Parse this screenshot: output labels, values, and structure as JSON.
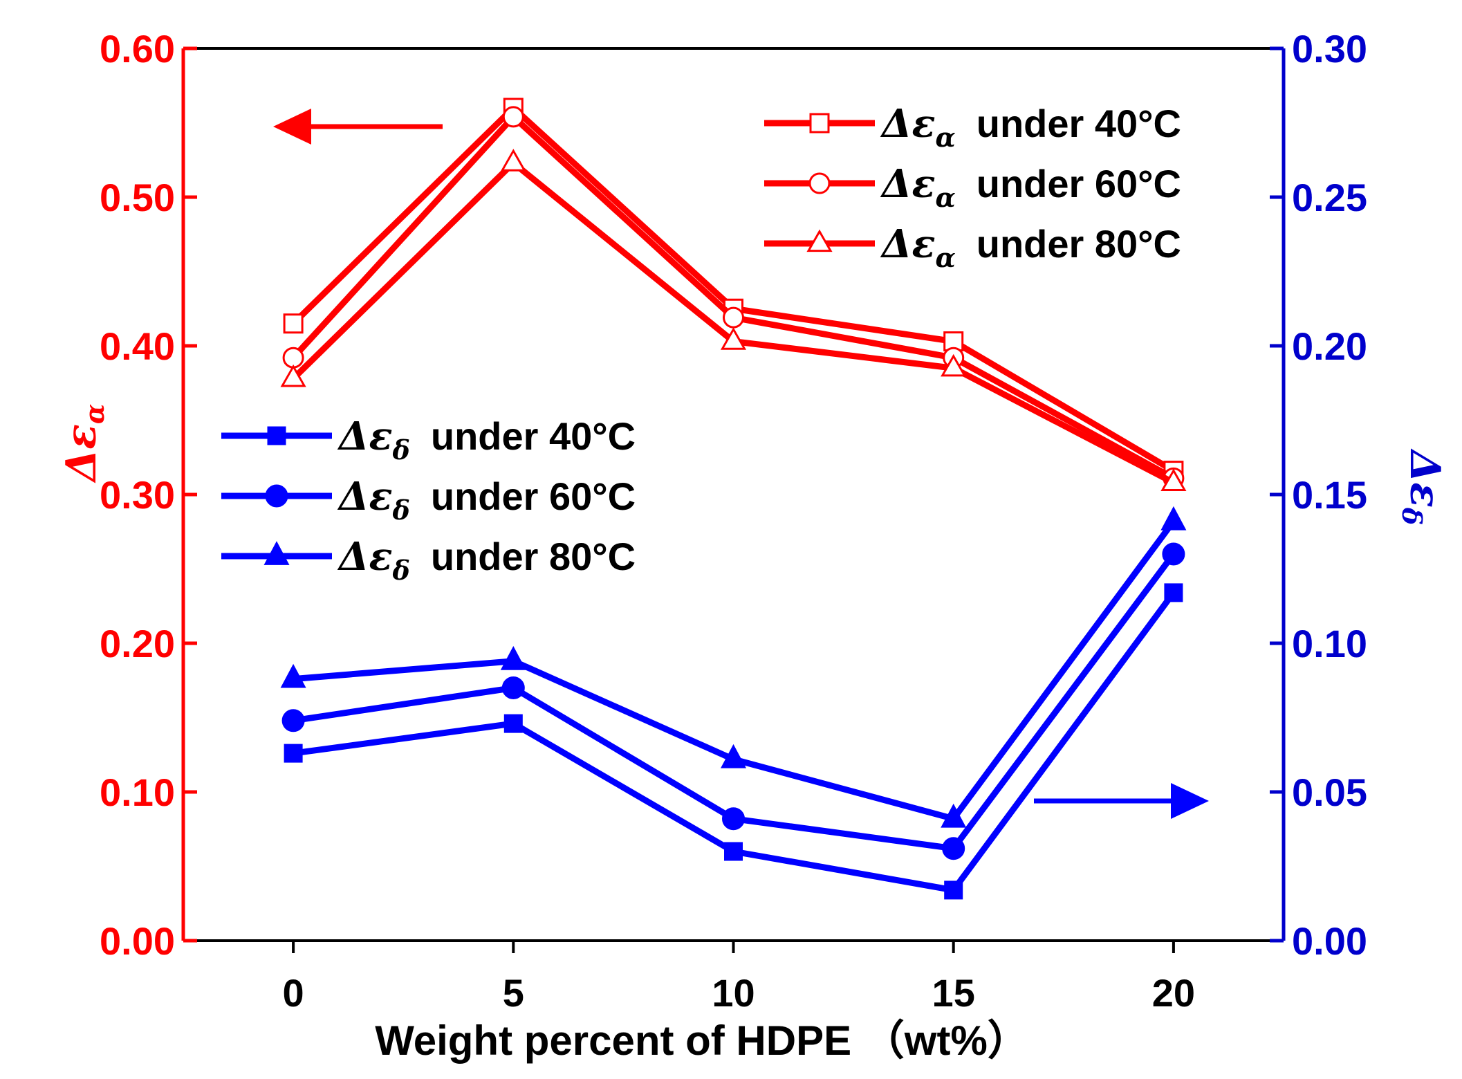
{
  "chart_data": {
    "type": "line",
    "x": [
      0,
      5,
      10,
      15,
      20
    ],
    "xlim": [
      -2.5,
      22.5
    ],
    "xlabel": "Weight percent of HDPE （wt%）",
    "x_ticks": [
      "0",
      "5",
      "10",
      "15",
      "20"
    ],
    "left_axis": {
      "label_symbol": "Δε",
      "label_subscript": "α",
      "ylim": [
        0,
        0.6
      ],
      "ticks": [
        "0.00",
        "0.10",
        "0.20",
        "0.30",
        "0.40",
        "0.50",
        "0.60"
      ],
      "color": "#ff0000"
    },
    "right_axis": {
      "label": "Δε",
      "label_subscript": "δ",
      "ylim": [
        0,
        0.3
      ],
      "ticks": [
        "0.00",
        "0.05",
        "0.10",
        "0.15",
        "0.20",
        "0.25",
        "0.30"
      ],
      "color": "#0000cc"
    },
    "series": [
      {
        "name": "Δεα under 40°C",
        "symbol": "Δε",
        "subscript": "α",
        "rest": "under 40°C",
        "axis": "left",
        "marker": "square-open",
        "color": "#ff0000",
        "values": [
          0.415,
          0.56,
          0.425,
          0.403,
          0.316
        ]
      },
      {
        "name": "Δεα under 60°C",
        "symbol": "Δε",
        "subscript": "α",
        "rest": "under 60°C",
        "axis": "left",
        "marker": "circle-open",
        "color": "#ff0000",
        "values": [
          0.392,
          0.554,
          0.419,
          0.392,
          0.311
        ]
      },
      {
        "name": "Δεα under 80°C",
        "symbol": "Δε",
        "subscript": "α",
        "rest": "under 80°C",
        "axis": "left",
        "marker": "triangle-open",
        "color": "#ff0000",
        "values": [
          0.378,
          0.523,
          0.403,
          0.385,
          0.308
        ]
      },
      {
        "name": "Δεδ under 40°C",
        "symbol": "Δε",
        "subscript": "δ",
        "rest": "under 40°C",
        "axis": "right",
        "marker": "square-filled",
        "color": "#0000ff",
        "values": [
          0.063,
          0.073,
          0.03,
          0.017,
          0.117
        ]
      },
      {
        "name": "Δεδ under 60°C",
        "symbol": "Δε",
        "subscript": "δ",
        "rest": "under 60°C",
        "axis": "right",
        "marker": "circle-filled",
        "color": "#0000ff",
        "values": [
          0.074,
          0.085,
          0.041,
          0.031,
          0.13
        ]
      },
      {
        "name": "Δεδ under 80°C",
        "symbol": "Δε",
        "subscript": "δ",
        "rest": "under 80°C",
        "axis": "right",
        "marker": "triangle-filled",
        "color": "#0000ff",
        "values": [
          0.088,
          0.094,
          0.061,
          0.041,
          0.141
        ]
      }
    ],
    "annotations": [
      {
        "type": "arrow",
        "direction": "left",
        "axis": "left",
        "color": "#ff0000"
      },
      {
        "type": "arrow",
        "direction": "right",
        "axis": "right",
        "color": "#0000ff"
      }
    ],
    "legends": [
      "top-right (red series)",
      "middle-left (blue series)"
    ],
    "grid": false
  }
}
